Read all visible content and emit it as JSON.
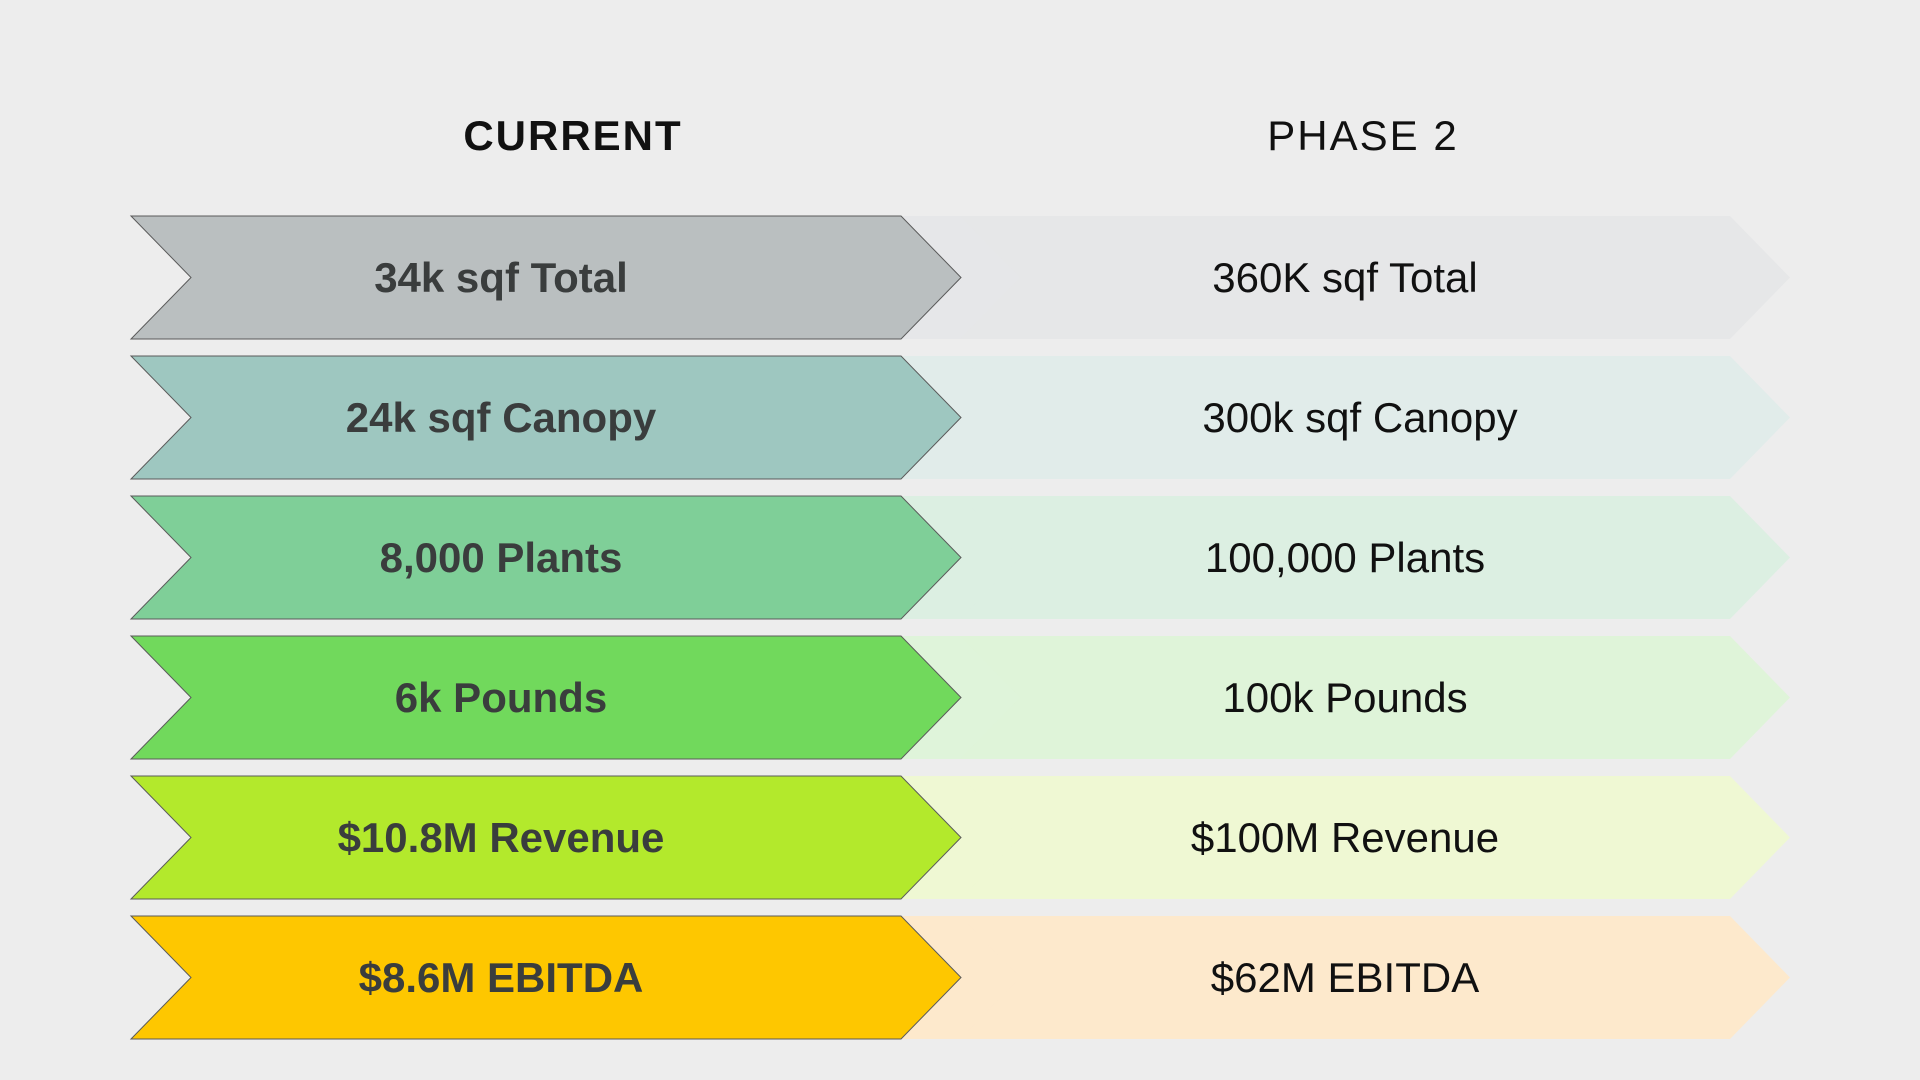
{
  "headers": {
    "current": "CURRENT",
    "phase2": "PHASE 2"
  },
  "rows": [
    {
      "current": "34k sqf Total",
      "phase2": "360K sqf Total",
      "color": "#babfc0",
      "light": "#e6e7e8"
    },
    {
      "current": "24k sqf Canopy",
      "phase2": "300k sqf Canopy",
      "color": "#9ec7c0",
      "light": "#e1ecea"
    },
    {
      "current": "8,000 Plants",
      "phase2": "100,000 Plants",
      "color": "#7fcf98",
      "light": "#dcefe2"
    },
    {
      "current": "6k Pounds",
      "phase2": "100k Pounds",
      "color": "#71d95c",
      "light": "#dff4d9"
    },
    {
      "current": "$10.8M Revenue",
      "phase2": "$100M Revenue",
      "color": "#b3e92c",
      "light": "#eff8d3"
    },
    {
      "current": "$8.6M EBITDA",
      "phase2": "$62M EBITDA",
      "color": "#fec700",
      "light": "#fde9cc"
    }
  ]
}
